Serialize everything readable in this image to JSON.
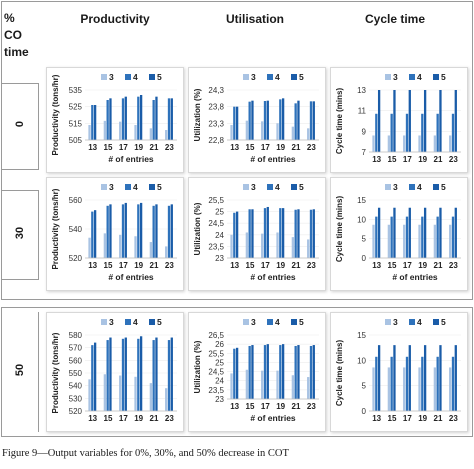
{
  "table": {
    "header": {
      "co_time_line1": "%",
      "co_time_line2": "CO",
      "co_time_line3": "time",
      "columns": [
        "Productivity",
        "Utilisation",
        "Cycle time"
      ]
    },
    "rows": [
      "0",
      "30",
      "50"
    ]
  },
  "legend_labels": [
    "3",
    "4",
    "5"
  ],
  "colors": {
    "s3": "#a9c3e3",
    "s4": "#2e72bb",
    "s5": "#1a5ca8"
  },
  "caption": "Figure 9—Output variables for 0%, 30%, and 50% decrease in COT",
  "chart_data": [
    {
      "id": "prod-0",
      "type": "bar",
      "categories": [
        "13",
        "15",
        "17",
        "19",
        "21",
        "23"
      ],
      "series": [
        {
          "name": "3",
          "values": [
            514,
            516.5,
            516,
            514,
            512,
            511
          ]
        },
        {
          "name": "4",
          "values": [
            526,
            529,
            530,
            531,
            529,
            530
          ]
        },
        {
          "name": "5",
          "values": [
            526,
            530,
            531,
            532,
            531,
            530
          ]
        }
      ],
      "ylabel": "Productivity (tons/hr)",
      "xlabel": "# of entries",
      "ylim": [
        505,
        535
      ],
      "yticks": [
        "505",
        "515",
        "525",
        "535"
      ]
    },
    {
      "id": "util-0",
      "type": "bar",
      "categories": [
        "13",
        "15",
        "17",
        "19",
        "21",
        "23"
      ],
      "series": [
        {
          "name": "3",
          "values": [
            23.25,
            23.38,
            23.36,
            23.3,
            23.2,
            23.15
          ]
        },
        {
          "name": "4",
          "values": [
            23.8,
            23.95,
            23.97,
            24.02,
            23.9,
            23.96
          ]
        },
        {
          "name": "5",
          "values": [
            23.8,
            23.98,
            23.98,
            24.05,
            23.98,
            23.96
          ]
        }
      ],
      "ylabel": "Utilization (%)",
      "xlabel": "# of entries",
      "ylim": [
        22.8,
        24.3
      ],
      "yticks": [
        "22,8",
        "23,3",
        "23,8",
        "24,3"
      ]
    },
    {
      "id": "cycle-0",
      "type": "bar",
      "categories": [
        "13",
        "15",
        "17",
        "19",
        "21",
        "23"
      ],
      "series": [
        {
          "name": "3",
          "values": [
            8.6,
            8.6,
            8.6,
            8.6,
            8.6,
            8.6
          ]
        },
        {
          "name": "4",
          "values": [
            10.7,
            10.7,
            10.7,
            10.7,
            10.7,
            10.7
          ]
        },
        {
          "name": "5",
          "values": [
            13.4,
            13.4,
            13.4,
            13.4,
            13.4,
            13.4
          ]
        }
      ],
      "ylabel": "Cycle time (mins)",
      "xlabel": "",
      "ylim": [
        7,
        13
      ],
      "yticks": [
        "7",
        "9",
        "11",
        "13"
      ]
    },
    {
      "id": "prod-30",
      "type": "bar",
      "categories": [
        "13",
        "15",
        "17",
        "19",
        "21",
        "23"
      ],
      "series": [
        {
          "name": "3",
          "values": [
            534,
            537,
            536,
            535,
            531,
            528
          ]
        },
        {
          "name": "4",
          "values": [
            552,
            556,
            557,
            557,
            556,
            556
          ]
        },
        {
          "name": "5",
          "values": [
            553,
            557,
            558,
            558,
            557,
            557
          ]
        }
      ],
      "ylabel": "Productivity (tons/hr)",
      "xlabel": "# of entries",
      "ylim": [
        520,
        560
      ],
      "yticks": [
        "520",
        "540",
        "560"
      ]
    },
    {
      "id": "util-30",
      "type": "bar",
      "categories": [
        "13",
        "15",
        "17",
        "19",
        "21",
        "23"
      ],
      "series": [
        {
          "name": "3",
          "values": [
            24.0,
            24.1,
            24.05,
            24.1,
            23.9,
            23.8
          ]
        },
        {
          "name": "4",
          "values": [
            24.95,
            25.1,
            25.15,
            25.15,
            25.08,
            25.08
          ]
        },
        {
          "name": "5",
          "values": [
            25.0,
            25.1,
            25.2,
            25.15,
            25.1,
            25.1
          ]
        }
      ],
      "ylabel": "Utilization (%)",
      "xlabel": "# of entries",
      "ylim": [
        23,
        25.5
      ],
      "yticks": [
        "23",
        "23,5",
        "24",
        "24,5",
        "25",
        "25,5"
      ]
    },
    {
      "id": "cycle-30",
      "type": "bar",
      "categories": [
        "13",
        "15",
        "17",
        "19",
        "21",
        "23"
      ],
      "series": [
        {
          "name": "3",
          "values": [
            8.6,
            8.6,
            8.6,
            8.6,
            8.6,
            8.6
          ]
        },
        {
          "name": "4",
          "values": [
            10.7,
            10.7,
            10.7,
            10.7,
            10.7,
            10.7
          ]
        },
        {
          "name": "5",
          "values": [
            13,
            13,
            13,
            13,
            13,
            13
          ]
        }
      ],
      "ylabel": "Cycle time (mins)",
      "xlabel": "# of entries",
      "ylim": [
        0,
        15
      ],
      "yticks": [
        "0",
        "5",
        "10",
        "15"
      ]
    },
    {
      "id": "prod-50",
      "type": "bar",
      "categories": [
        "13",
        "15",
        "17",
        "19",
        "21",
        "23"
      ],
      "series": [
        {
          "name": "3",
          "values": [
            545,
            549,
            548,
            547,
            542,
            538
          ]
        },
        {
          "name": "4",
          "values": [
            572,
            576,
            577,
            577,
            576,
            576
          ]
        },
        {
          "name": "5",
          "values": [
            574,
            578,
            578,
            579,
            578,
            578
          ]
        }
      ],
      "ylabel": "Productivity (tons/hr)",
      "xlabel": "",
      "ylim": [
        520,
        580
      ],
      "yticks": [
        "520",
        "530",
        "540",
        "550",
        "560",
        "570",
        "580"
      ]
    },
    {
      "id": "util-50",
      "type": "bar",
      "categories": [
        "13",
        "15",
        "17",
        "19",
        "21",
        "23"
      ],
      "series": [
        {
          "name": "3",
          "values": [
            24.4,
            24.6,
            24.55,
            24.55,
            24.3,
            24.2
          ]
        },
        {
          "name": "4",
          "values": [
            25.75,
            25.9,
            25.95,
            25.95,
            25.9,
            25.9
          ]
        },
        {
          "name": "5",
          "values": [
            25.8,
            25.95,
            26.0,
            26.0,
            25.95,
            25.95
          ]
        }
      ],
      "ylabel": "Utilization (%)",
      "xlabel": "# of entries",
      "ylim": [
        23,
        26.5
      ],
      "yticks": [
        "23",
        "23,5",
        "24",
        "24,5",
        "25",
        "25,5",
        "26",
        "26,5"
      ]
    },
    {
      "id": "cycle-50",
      "type": "bar",
      "categories": [
        "13",
        "15",
        "17",
        "19",
        "21",
        "23"
      ],
      "series": [
        {
          "name": "3",
          "values": [
            8.6,
            8.6,
            8.6,
            8.6,
            8.6,
            8.6
          ]
        },
        {
          "name": "4",
          "values": [
            10.7,
            10.7,
            10.7,
            10.7,
            10.7,
            10.7
          ]
        },
        {
          "name": "5",
          "values": [
            13,
            13,
            13,
            13,
            13,
            13
          ]
        }
      ],
      "ylabel": "Cycle time (mins)",
      "xlabel": "",
      "ylim": [
        0,
        15
      ],
      "yticks": [
        "0",
        "5",
        "10",
        "15"
      ]
    }
  ]
}
